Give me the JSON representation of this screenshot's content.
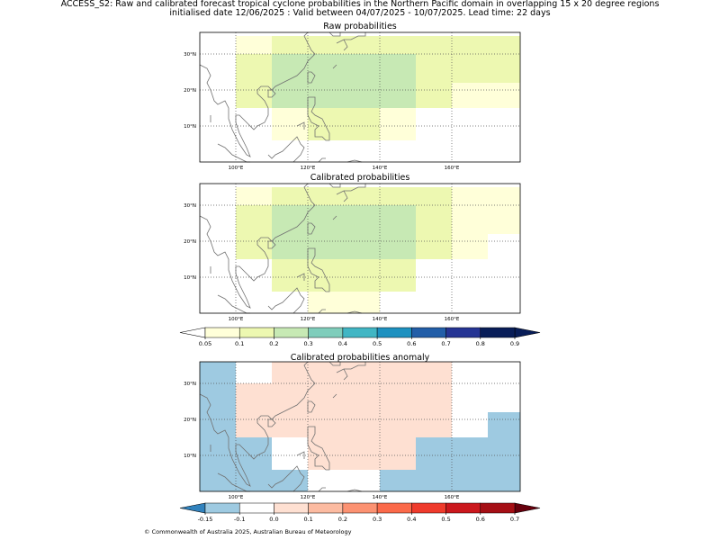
{
  "title_line1": "ACCESS_S2: Raw and calibrated forecast tropical cyclone probabilities in the Northern Pacific domain in overlapping 15 x 20 degree regions",
  "title_line2": "initialised date 12/06/2025 :  Valid between 04/07/2025 - 10/07/2025. Lead time: 22 days",
  "footer": "© Commonwealth of Australia 2025, Australian Bureau of Meteorology",
  "chart_data": [
    {
      "type": "heatmap",
      "title": "Raw probabilities",
      "xlim": [
        90,
        179
      ],
      "ylim": [
        0,
        36
      ],
      "x_ticks": [
        100,
        120,
        140,
        160
      ],
      "x_tick_labels": [
        "100°E",
        "120°E",
        "140°E",
        "160°E"
      ],
      "y_ticks": [
        10,
        20,
        30
      ],
      "y_tick_labels": [
        "10°N",
        "20°N",
        "30°N"
      ],
      "grid": true,
      "cells": [
        {
          "lon": [
            100,
            110
          ],
          "lat": [
            30,
            35
          ],
          "value": 0.05
        },
        {
          "lon": [
            110,
            150
          ],
          "lat": [
            30,
            35
          ],
          "value": 0.1
        },
        {
          "lon": [
            150,
            179
          ],
          "lat": [
            30,
            35
          ],
          "value": 0.1
        },
        {
          "lon": [
            100,
            110
          ],
          "lat": [
            15,
            30
          ],
          "value": 0.1
        },
        {
          "lon": [
            110,
            150
          ],
          "lat": [
            15,
            30
          ],
          "value": 0.2
        },
        {
          "lon": [
            150,
            160
          ],
          "lat": [
            15,
            30
          ],
          "value": 0.1
        },
        {
          "lon": [
            160,
            179
          ],
          "lat": [
            22,
            30
          ],
          "value": 0.1
        },
        {
          "lon": [
            160,
            179
          ],
          "lat": [
            15,
            22
          ],
          "value": 0.05
        },
        {
          "lon": [
            110,
            120
          ],
          "lat": [
            6,
            15
          ],
          "value": 0.05
        },
        {
          "lon": [
            120,
            140
          ],
          "lat": [
            6,
            15
          ],
          "value": 0.1
        },
        {
          "lon": [
            140,
            150
          ],
          "lat": [
            6,
            15
          ],
          "value": 0.05
        }
      ]
    },
    {
      "type": "heatmap",
      "title": "Calibrated probabilities",
      "xlim": [
        90,
        179
      ],
      "ylim": [
        0,
        36
      ],
      "x_ticks": [
        100,
        120,
        140,
        160
      ],
      "x_tick_labels": [
        "100°E",
        "120°E",
        "140°E",
        "160°E"
      ],
      "y_ticks": [
        10,
        20,
        30
      ],
      "y_tick_labels": [
        "10°N",
        "20°N",
        "30°N"
      ],
      "grid": true,
      "cells": [
        {
          "lon": [
            100,
            110
          ],
          "lat": [
            30,
            35
          ],
          "value": 0.05
        },
        {
          "lon": [
            110,
            150
          ],
          "lat": [
            30,
            35
          ],
          "value": 0.1
        },
        {
          "lon": [
            150,
            160
          ],
          "lat": [
            30,
            35
          ],
          "value": 0.1
        },
        {
          "lon": [
            160,
            179
          ],
          "lat": [
            30,
            35
          ],
          "value": 0.05
        },
        {
          "lon": [
            100,
            110
          ],
          "lat": [
            15,
            30
          ],
          "value": 0.1
        },
        {
          "lon": [
            110,
            150
          ],
          "lat": [
            15,
            30
          ],
          "value": 0.2
        },
        {
          "lon": [
            150,
            160
          ],
          "lat": [
            15,
            30
          ],
          "value": 0.1
        },
        {
          "lon": [
            160,
            179
          ],
          "lat": [
            22,
            30
          ],
          "value": 0.05
        },
        {
          "lon": [
            160,
            170
          ],
          "lat": [
            15,
            22
          ],
          "value": 0.05
        },
        {
          "lon": [
            110,
            150
          ],
          "lat": [
            6,
            15
          ],
          "value": 0.1
        },
        {
          "lon": [
            120,
            140
          ],
          "lat": [
            0,
            6
          ],
          "value": 0.05
        }
      ]
    },
    {
      "type": "heatmap",
      "title": "Calibrated probabilities anomaly",
      "xlim": [
        90,
        179
      ],
      "ylim": [
        0,
        36
      ],
      "x_ticks": [
        100,
        120,
        140,
        160
      ],
      "x_tick_labels": [
        "100°E",
        "120°E",
        "140°E",
        "160°E"
      ],
      "y_ticks": [
        10,
        20,
        30
      ],
      "y_tick_labels": [
        "10°N",
        "20°N",
        "30°N"
      ],
      "grid": true,
      "cells": [
        {
          "lon": [
            90,
            100
          ],
          "lat": [
            0,
            36
          ],
          "value": -0.15
        },
        {
          "lon": [
            100,
            110
          ],
          "lat": [
            30,
            36
          ],
          "value": -0.1
        },
        {
          "lon": [
            110,
            150
          ],
          "lat": [
            30,
            36
          ],
          "value": 0.0
        },
        {
          "lon": [
            150,
            160
          ],
          "lat": [
            30,
            36
          ],
          "value": 0.0
        },
        {
          "lon": [
            160,
            179
          ],
          "lat": [
            30,
            36
          ],
          "value": -0.1
        },
        {
          "lon": [
            100,
            110
          ],
          "lat": [
            15,
            30
          ],
          "value": 0.0
        },
        {
          "lon": [
            110,
            150
          ],
          "lat": [
            15,
            30
          ],
          "value": 0.05
        },
        {
          "lon": [
            150,
            160
          ],
          "lat": [
            15,
            30
          ],
          "value": 0.0
        },
        {
          "lon": [
            160,
            170
          ],
          "lat": [
            15,
            30
          ],
          "value": -0.1
        },
        {
          "lon": [
            170,
            179
          ],
          "lat": [
            22,
            30
          ],
          "value": -0.1
        },
        {
          "lon": [
            170,
            179
          ],
          "lat": [
            15,
            22
          ],
          "value": -0.15
        },
        {
          "lon": [
            100,
            110
          ],
          "lat": [
            0,
            15
          ],
          "value": -0.15
        },
        {
          "lon": [
            110,
            120
          ],
          "lat": [
            6,
            15
          ],
          "value": -0.1
        },
        {
          "lon": [
            120,
            150
          ],
          "lat": [
            6,
            15
          ],
          "value": 0.0
        },
        {
          "lon": [
            150,
            179
          ],
          "lat": [
            0,
            15
          ],
          "value": -0.15
        },
        {
          "lon": [
            110,
            120
          ],
          "lat": [
            0,
            6
          ],
          "value": -0.15
        },
        {
          "lon": [
            120,
            140
          ],
          "lat": [
            0,
            6
          ],
          "value": -0.1
        },
        {
          "lon": [
            140,
            150
          ],
          "lat": [
            0,
            6
          ],
          "value": -0.15
        }
      ]
    }
  ],
  "colorbars": [
    {
      "name": "probability",
      "tick_labels": [
        "0.05",
        "0.1",
        "0.2",
        "0.3",
        "0.4",
        "0.5",
        "0.6",
        "0.7",
        "0.8",
        "0.9"
      ],
      "colors": [
        "#ffffd9",
        "#edf8b1",
        "#c7e9b4",
        "#7fcdbb",
        "#41b6c4",
        "#1d91c0",
        "#225ea8",
        "#253494",
        "#081d58"
      ],
      "under_color": "#ffffff",
      "over_color": "#081d58"
    },
    {
      "name": "anomaly",
      "tick_labels": [
        "-0.15",
        "-0.1",
        "0.0",
        "0.1",
        "0.2",
        "0.3",
        "0.4",
        "0.5",
        "0.6",
        "0.7"
      ],
      "colors": [
        "#9ecae1",
        "#ffffff",
        "#fee0d2",
        "#fcbba1",
        "#fc9272",
        "#fb6a4a",
        "#ef3b2c",
        "#cb181d",
        "#a50f15"
      ],
      "under_color": "#3182bd",
      "over_color": "#67000d"
    }
  ]
}
